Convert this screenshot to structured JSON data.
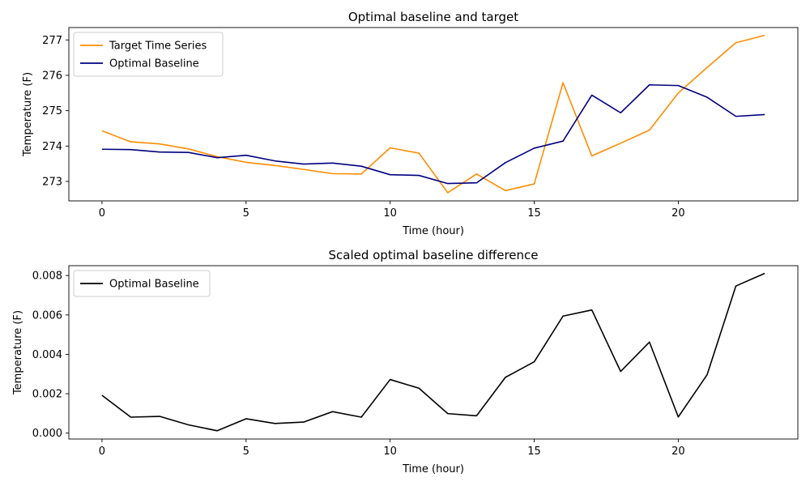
{
  "chart_data": [
    {
      "type": "line",
      "title": "Optimal baseline and target",
      "xlabel": "Time (hour)",
      "ylabel": "Temperature (F)",
      "xlim": [
        -1.15,
        24.15
      ],
      "ylim": [
        272.45,
        277.35
      ],
      "xticks": [
        0,
        5,
        10,
        15,
        20
      ],
      "yticks": [
        273,
        274,
        275,
        276,
        277
      ],
      "grid": false,
      "legend": "top-left",
      "x": [
        0,
        1,
        2,
        3,
        4,
        5,
        6,
        7,
        8,
        9,
        10,
        11,
        12,
        13,
        14,
        15,
        16,
        17,
        18,
        19,
        20,
        21,
        22,
        23
      ],
      "series": [
        {
          "name": "Target Time Series",
          "color": "#ff8c00",
          "values": [
            274.43,
            274.12,
            274.06,
            273.92,
            273.7,
            273.54,
            273.45,
            273.34,
            273.22,
            273.21,
            273.95,
            273.8,
            272.68,
            273.21,
            272.74,
            272.93,
            275.79,
            273.72,
            274.08,
            274.45,
            275.5,
            276.22,
            276.92,
            277.13
          ]
        },
        {
          "name": "Optimal Baseline",
          "color": "#000080",
          "values": [
            273.91,
            273.9,
            273.83,
            273.82,
            273.67,
            273.74,
            273.58,
            273.49,
            273.52,
            273.43,
            273.19,
            273.17,
            272.94,
            272.96,
            273.53,
            273.94,
            274.14,
            275.44,
            274.94,
            275.73,
            275.71,
            275.38,
            274.84,
            274.89
          ]
        }
      ]
    },
    {
      "type": "line",
      "title": "Scaled optimal baseline difference",
      "xlabel": "Time (hour)",
      "ylabel": "Temperature (F)",
      "xlim": [
        -1.15,
        24.15
      ],
      "ylim": [
        -0.0003,
        0.0085
      ],
      "xticks": [
        0,
        5,
        10,
        15,
        20
      ],
      "yticks": [
        0.0,
        0.002,
        0.004,
        0.006,
        0.008
      ],
      "ytick_labels": [
        "0.000",
        "0.002",
        "0.004",
        "0.006",
        "0.008"
      ],
      "grid": false,
      "legend": "top-left",
      "x": [
        0,
        1,
        2,
        3,
        4,
        5,
        6,
        7,
        8,
        9,
        10,
        11,
        12,
        13,
        14,
        15,
        16,
        17,
        18,
        19,
        20,
        21,
        22,
        23
      ],
      "series": [
        {
          "name": "Optimal Baseline",
          "color": "#000000",
          "values": [
            0.00192,
            0.00081,
            0.00085,
            0.00042,
            0.00012,
            0.00073,
            0.00049,
            0.00056,
            0.00109,
            0.00081,
            0.00272,
            0.00228,
            0.00099,
            0.00088,
            0.00283,
            0.00362,
            0.00594,
            0.00625,
            0.00313,
            0.00462,
            0.00082,
            0.00296,
            0.00747,
            0.00811
          ]
        }
      ]
    }
  ]
}
